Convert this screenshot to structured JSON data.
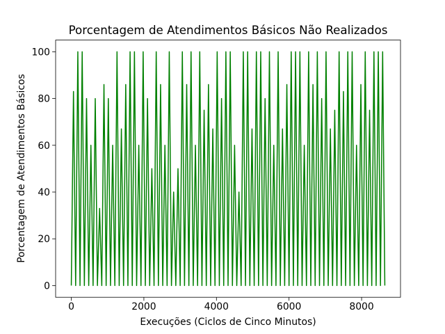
{
  "chart_data": {
    "type": "line",
    "title": "Porcentagem de Atendimentos Básicos Não Realizados",
    "x_label": "Execuções (Ciclos de Cinco Minutos)",
    "y_label": "Porcentagem de Atendimentos Básicos",
    "x": [
      0,
      60,
      120,
      180,
      240,
      300,
      360,
      420,
      480,
      540,
      600,
      660,
      720,
      780,
      840,
      900,
      960,
      1020,
      1080,
      1140,
      1200,
      1260,
      1320,
      1380,
      1440,
      1500,
      1560,
      1620,
      1680,
      1740,
      1800,
      1860,
      1920,
      1980,
      2040,
      2100,
      2160,
      2220,
      2280,
      2340,
      2400,
      2460,
      2520,
      2580,
      2640,
      2700,
      2760,
      2820,
      2880,
      2940,
      3000,
      3060,
      3120,
      3180,
      3240,
      3300,
      3360,
      3420,
      3480,
      3540,
      3600,
      3660,
      3720,
      3780,
      3840,
      3900,
      3960,
      4020,
      4080,
      4140,
      4200,
      4260,
      4320,
      4380,
      4440,
      4500,
      4560,
      4620,
      4680,
      4740,
      4800,
      4860,
      4920,
      4980,
      5040,
      5100,
      5160,
      5220,
      5280,
      5340,
      5400,
      5460,
      5520,
      5580,
      5640,
      5700,
      5760,
      5820,
      5880,
      5940,
      6000,
      6060,
      6120,
      6180,
      6240,
      6300,
      6360,
      6420,
      6480,
      6540,
      6600,
      6660,
      6720,
      6780,
      6840,
      6900,
      6960,
      7020,
      7080,
      7140,
      7200,
      7260,
      7320,
      7380,
      7440,
      7500,
      7560,
      7620,
      7680,
      7740,
      7800,
      7860,
      7920,
      7980,
      8040,
      8100,
      8160,
      8220,
      8280,
      8340,
      8400,
      8460,
      8520,
      8580,
      8640
    ],
    "series": [
      {
        "name": "Porcentagem",
        "color": "#008000",
        "values": [
          0,
          83,
          0,
          100,
          0,
          100,
          0,
          80,
          0,
          60,
          0,
          80,
          0,
          33,
          0,
          86,
          0,
          80,
          0,
          60,
          0,
          100,
          0,
          67,
          0,
          86,
          0,
          100,
          0,
          100,
          0,
          60,
          0,
          100,
          0,
          80,
          0,
          50,
          0,
          100,
          0,
          86,
          0,
          60,
          0,
          100,
          0,
          40,
          0,
          50,
          0,
          100,
          0,
          86,
          0,
          100,
          0,
          60,
          0,
          100,
          0,
          75,
          0,
          86,
          0,
          67,
          0,
          100,
          0,
          80,
          0,
          100,
          0,
          100,
          0,
          60,
          0,
          40,
          0,
          100,
          0,
          100,
          0,
          67,
          0,
          100,
          0,
          100,
          0,
          80,
          0,
          100,
          0,
          60,
          0,
          100,
          0,
          67,
          0,
          86,
          0,
          100,
          0,
          100,
          0,
          100,
          0,
          60,
          0,
          100,
          0,
          86,
          0,
          100,
          0,
          80,
          0,
          100,
          0,
          67,
          0,
          75,
          0,
          100,
          0,
          83,
          0,
          100,
          0,
          100,
          0,
          60,
          0,
          86,
          0,
          100,
          0,
          75,
          0,
          100,
          0,
          100,
          0,
          100,
          0
        ]
      }
    ],
    "xlim": [
      -432,
      9072
    ],
    "ylim": [
      -5,
      105
    ],
    "xticks": [
      0,
      2000,
      4000,
      6000,
      8000
    ],
    "yticks": [
      0,
      20,
      40,
      60,
      80,
      100
    ]
  }
}
